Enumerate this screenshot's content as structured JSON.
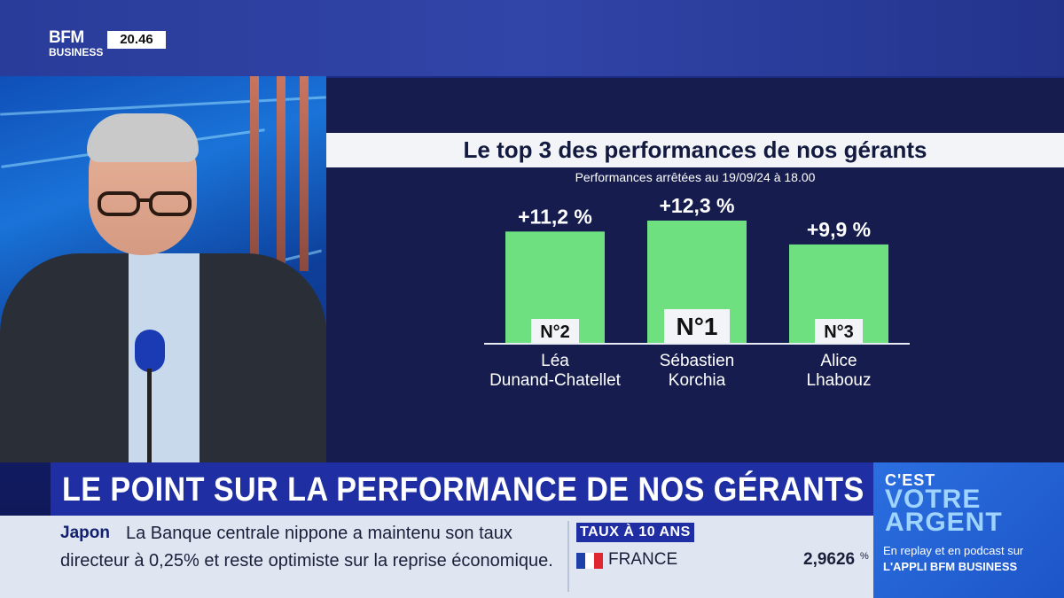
{
  "channel": {
    "logo_line1": "BFM",
    "logo_line2": "BUSINESS",
    "clock": "20.46"
  },
  "chart_data": {
    "type": "bar",
    "title": "Le top 3 des performances de nos gérants",
    "subtitle": "Performances arrêtées au 19/09/24 à 18.00",
    "categories": [
      "Léa Dunand-Chatellet",
      "Sébastien Korchia",
      "Alice Lhabouz"
    ],
    "category_lines": [
      [
        "Léa",
        "Dunand-Chatellet"
      ],
      [
        "Sébastien",
        "Korchia"
      ],
      [
        "Alice",
        "Lhabouz"
      ]
    ],
    "values": [
      11.2,
      12.3,
      9.9
    ],
    "value_labels": [
      "+11,2 %",
      "+12,3 %",
      "+9,9 %"
    ],
    "ranks": [
      "N°2",
      "N°1",
      "N°3"
    ],
    "ylim": [
      0,
      12.3
    ],
    "bar_color": "#6fe07f",
    "grid": false
  },
  "lower_third": {
    "headline": "LE POINT SUR LA PERFORMANCE DE NOS GÉRANTS"
  },
  "ticker": {
    "country": "Japon",
    "line1": "La Banque centrale nippone a maintenu son taux",
    "line2": "directeur à 0,25% et reste optimiste sur la reprise économique."
  },
  "rates": {
    "label": "TAUX À 10 ANS",
    "country": "FRANCE",
    "flag_colors": [
      "#1d3fa8",
      "#ffffff",
      "#e0262f"
    ],
    "value": "2,9626",
    "unit": "%"
  },
  "promo": {
    "line1": "C'EST",
    "line2": "VOTRE",
    "line3": "ARGENT",
    "line4": "En replay et en podcast sur",
    "line5": "L'APPLI BFM BUSINESS"
  }
}
